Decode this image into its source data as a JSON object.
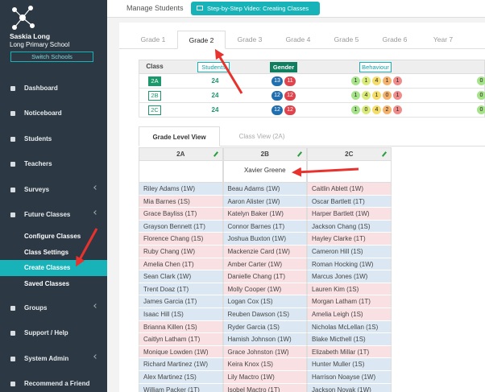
{
  "sidebar": {
    "user_name": "Saskia Long",
    "school": "Long Primary School",
    "switch_button": "Switch Schools",
    "menu": [
      "Dashboard",
      "Noticeboard",
      "Students",
      "Teachers",
      "Surveys",
      "Future Classes",
      "Configure Classes",
      "Class Settings",
      "Create Classes",
      "Saved Classes",
      "Groups",
      "Support / Help",
      "System Admin",
      "Recommend a Friend"
    ]
  },
  "header": {
    "title": "Manage Students",
    "video_button": "Step-by-Step Video: Creating Classes"
  },
  "grade_tabs": [
    "Grade 1",
    "Grade 2",
    "Grade 3",
    "Grade 4",
    "Grade 5",
    "Grade 6",
    "Year 7"
  ],
  "summary": {
    "headers": [
      "Class",
      "Students",
      "Gender",
      "Behaviour"
    ],
    "gender_colors": [
      "#1f6fb0",
      "#e0434b"
    ],
    "behaviour_colors": [
      "#a6e38a",
      "#d9ec7a",
      "#f5dd6a",
      "#f5b26c",
      "#ef8c8c"
    ],
    "rows": [
      {
        "class": "2A",
        "students": 24,
        "gender": [
          13,
          11
        ],
        "behaviour": [
          1,
          1,
          4,
          1,
          1
        ],
        "extra": 0
      },
      {
        "class": "2B",
        "students": 24,
        "gender": [
          12,
          12
        ],
        "behaviour": [
          1,
          4,
          1,
          0,
          1
        ],
        "extra": 0
      },
      {
        "class": "2C",
        "students": 24,
        "gender": [
          12,
          12
        ],
        "behaviour": [
          1,
          0,
          4,
          2,
          1
        ],
        "extra": 0
      }
    ]
  },
  "view_tabs": [
    "Grade Level View",
    "Class View (2A)"
  ],
  "classes": [
    {
      "name": "2A",
      "students": [
        {
          "name": "Riley Adams (1W)",
          "color": "#dbe8f4"
        },
        {
          "name": "Mia Barnes (1S)",
          "color": "#f9e0e3"
        },
        {
          "name": "Grace Bayliss (1T)",
          "color": "#f9e0e3"
        },
        {
          "name": "Grayson Bennett (1T)",
          "color": "#dbe8f4"
        },
        {
          "name": "Florence Chang (1S)",
          "color": "#f9e0e3"
        },
        {
          "name": "Ruby Chang (1W)",
          "color": "#f9e0e3"
        },
        {
          "name": "Amelia Chen (1T)",
          "color": "#f9e0e3"
        },
        {
          "name": "Sean Clark (1W)",
          "color": "#dbe8f4"
        },
        {
          "name": "Trent Doaz (1T)",
          "color": "#dbe8f4"
        },
        {
          "name": "James Garcia (1T)",
          "color": "#dbe8f4"
        },
        {
          "name": "Isaac Hill (1S)",
          "color": "#dbe8f4"
        },
        {
          "name": "Brianna Killen (1S)",
          "color": "#f9e0e3"
        },
        {
          "name": "Caitlyn Latham (1T)",
          "color": "#f9e0e3"
        },
        {
          "name": "Monique Lowden (1W)",
          "color": "#f9e0e3"
        },
        {
          "name": "Richard Martinez (1W)",
          "color": "#dbe8f4"
        },
        {
          "name": "Alex Martinez (1S)",
          "color": "#dbe8f4"
        },
        {
          "name": "William Packer (1T)",
          "color": "#dbe8f4"
        }
      ]
    },
    {
      "name": "2B",
      "pending": "Xavier Greene",
      "students": [
        {
          "name": "Beau Adams (1W)",
          "color": "#dbe8f4"
        },
        {
          "name": "Aaron Alister (1W)",
          "color": "#dbe8f4"
        },
        {
          "name": "Katelyn Baker (1W)",
          "color": "#f9e0e3"
        },
        {
          "name": "Connor Barnes (1T)",
          "color": "#dbe8f4"
        },
        {
          "name": "Joshua Buxton (1W)",
          "color": "#dbe8f4"
        },
        {
          "name": "Mackenzie Card (1W)",
          "color": "#f9e0e3"
        },
        {
          "name": "Amber Carter (1W)",
          "color": "#f9e0e3"
        },
        {
          "name": "Danielle Chang (1T)",
          "color": "#f9e0e3"
        },
        {
          "name": "Molly Cooper (1W)",
          "color": "#f9e0e3"
        },
        {
          "name": "Logan Cox (1S)",
          "color": "#dbe8f4"
        },
        {
          "name": "Reuben Dawson (1S)",
          "color": "#dbe8f4"
        },
        {
          "name": "Ryder Garcia (1S)",
          "color": "#dbe8f4"
        },
        {
          "name": "Hamish Johnson (1W)",
          "color": "#dbe8f4"
        },
        {
          "name": "Grace Johnston (1W)",
          "color": "#f9e0e3"
        },
        {
          "name": "Keira Knox (1S)",
          "color": "#f9e0e3"
        },
        {
          "name": "Lily Mactro (1W)",
          "color": "#f9e0e3"
        },
        {
          "name": "Isobel Mactro (1T)",
          "color": "#f9e0e3"
        }
      ]
    },
    {
      "name": "2C",
      "students": [
        {
          "name": "Caitlin Ablett (1W)",
          "color": "#f9e0e3"
        },
        {
          "name": "Oscar Bartlett (1T)",
          "color": "#dbe8f4"
        },
        {
          "name": "Harper Bartlett (1W)",
          "color": "#f9e0e3"
        },
        {
          "name": "Jackson Chang (1S)",
          "color": "#dbe8f4"
        },
        {
          "name": "Hayley Clarke (1T)",
          "color": "#f9e0e3"
        },
        {
          "name": "Cameron Hill (1S)",
          "color": "#dbe8f4"
        },
        {
          "name": "Roman Hocking (1W)",
          "color": "#dbe8f4"
        },
        {
          "name": "Marcus Jones (1W)",
          "color": "#dbe8f4"
        },
        {
          "name": "Lauren Kim (1S)",
          "color": "#f9e0e3"
        },
        {
          "name": "Morgan Latham (1T)",
          "color": "#f9e0e3"
        },
        {
          "name": "Amelia Leigh (1S)",
          "color": "#f9e0e3"
        },
        {
          "name": "Nicholas McLellan (1S)",
          "color": "#dbe8f4"
        },
        {
          "name": "Blake Micthell (1S)",
          "color": "#dbe8f4"
        },
        {
          "name": "Elizabeth Millar (1T)",
          "color": "#f9e0e3"
        },
        {
          "name": "Hunter Muller (1S)",
          "color": "#dbe8f4"
        },
        {
          "name": "Harrison Noayse (1W)",
          "color": "#dbe8f4"
        },
        {
          "name": "Jackson Novak (1W)",
          "color": "#dbe8f4"
        }
      ]
    }
  ]
}
